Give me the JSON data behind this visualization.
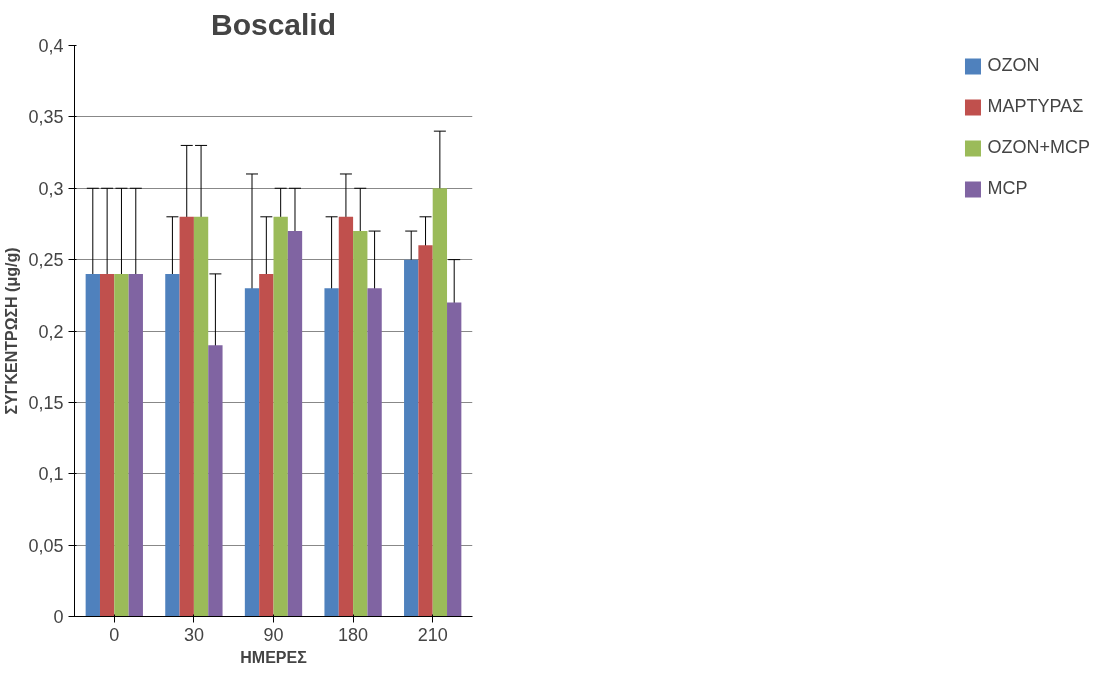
{
  "chart_data": {
    "type": "bar",
    "title": "Boscalid",
    "xlabel": "ΗΜΕΡΕΣ",
    "ylabel": "ΣΥΓΚΕΝΤΡΩΣΗ (μg/g)",
    "categories": [
      "0",
      "30",
      "90",
      "180",
      "210"
    ],
    "series": [
      {
        "name": "OZON",
        "color": "#4f81bd",
        "values": [
          0.24,
          0.24,
          0.23,
          0.23,
          0.25
        ],
        "errors": [
          0.06,
          0.04,
          0.08,
          0.05,
          0.02
        ]
      },
      {
        "name": "ΜΑΡΤΥΡΑΣ",
        "color": "#c0504d",
        "values": [
          0.24,
          0.28,
          0.24,
          0.28,
          0.26
        ],
        "errors": [
          0.06,
          0.05,
          0.04,
          0.03,
          0.02
        ]
      },
      {
        "name": "OZON+MCP",
        "color": "#9bbb59",
        "values": [
          0.24,
          0.28,
          0.28,
          0.27,
          0.3
        ],
        "errors": [
          0.06,
          0.05,
          0.02,
          0.03,
          0.04
        ]
      },
      {
        "name": "MCP",
        "color": "#8064a2",
        "values": [
          0.24,
          0.19,
          0.27,
          0.23,
          0.22
        ],
        "errors": [
          0.06,
          0.05,
          0.03,
          0.04,
          0.03
        ]
      }
    ],
    "ylim": [
      0,
      0.4
    ],
    "yticks": [
      0,
      {
        "value": 0.05,
        "label": "0,05"
      },
      {
        "value": 0.1,
        "label": "0,1"
      },
      {
        "value": 0.15,
        "label": "0,15"
      },
      {
        "value": 0.2,
        "label": "0,2"
      },
      {
        "value": 0.25,
        "label": "0,25"
      },
      {
        "value": 0.3,
        "label": "0,3"
      },
      {
        "value": 0.35,
        "label": "0,35"
      },
      {
        "value": 0.4,
        "label": "0,4"
      }
    ],
    "grid": "y",
    "legend": "right"
  }
}
